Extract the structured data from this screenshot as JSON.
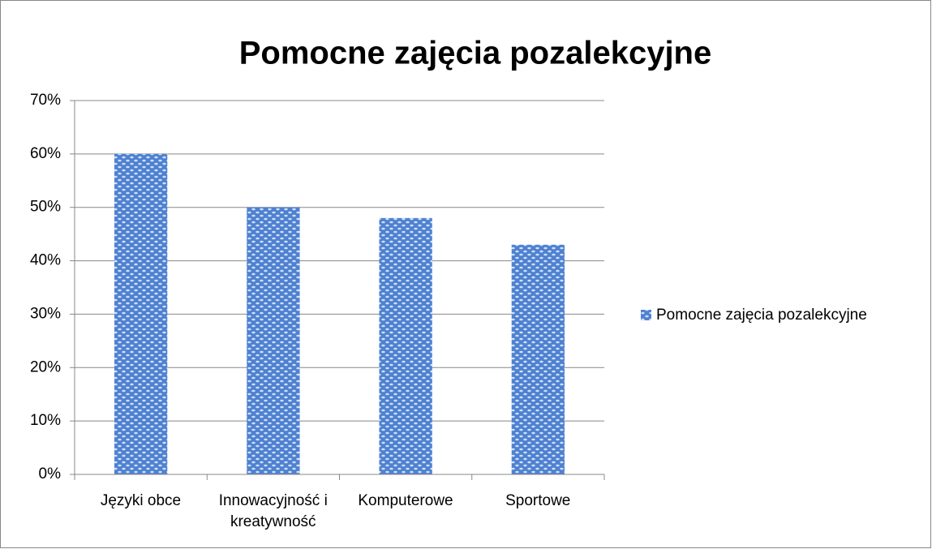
{
  "chart_data": {
    "type": "bar",
    "title": "Pomocne zajęcia pozalekcyjne",
    "categories": [
      "Języki obce",
      "Innowacyjność i kreatywność",
      "Komputerowe",
      "Sportowe"
    ],
    "series": [
      {
        "name": "Pomocne zajęcia pozalekcyjne",
        "color": "#4f81d0",
        "values": [
          60,
          50,
          48,
          43
        ]
      }
    ],
    "ylim": [
      0,
      70
    ],
    "yticks": [
      {
        "value": 0,
        "label": "0%"
      },
      {
        "value": 10,
        "label": "10%"
      },
      {
        "value": 20,
        "label": "20%"
      },
      {
        "value": 30,
        "label": "30%"
      },
      {
        "value": 40,
        "label": "40%"
      },
      {
        "value": 50,
        "label": "50%"
      },
      {
        "value": 60,
        "label": "60%"
      },
      {
        "value": 70,
        "label": "70%"
      }
    ],
    "grid": true,
    "legend": "right"
  }
}
